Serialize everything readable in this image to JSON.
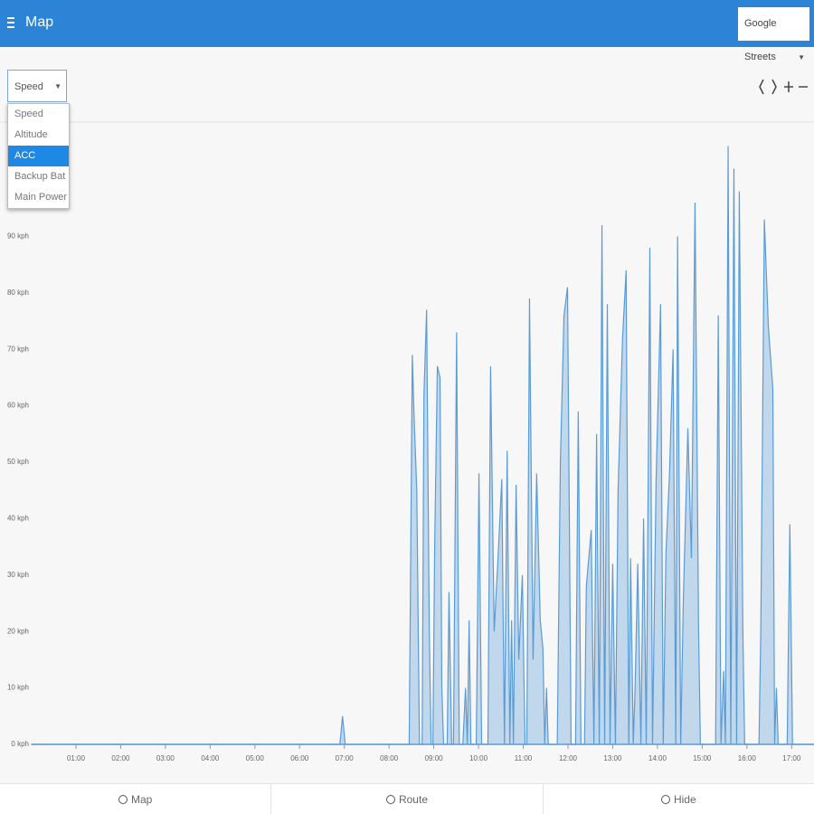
{
  "header": {
    "title": "Map",
    "map_layer": "Google Streets"
  },
  "metric_select": {
    "selected": "Speed",
    "options": [
      "Speed",
      "Altitude",
      "ACC",
      "Backup Bat",
      "Main Power"
    ],
    "highlighted_index": 2
  },
  "footer": {
    "tabs": [
      "Map",
      "Route",
      "Hide"
    ]
  },
  "chart_data": {
    "type": "area",
    "color": "#5b9bd5",
    "x": [
      0,
      6.9,
      6.96,
      7.02,
      8.45,
      8.52,
      8.56,
      8.62,
      8.68,
      8.74,
      8.78,
      8.84,
      8.9,
      8.94,
      8.98,
      9.02,
      9.08,
      9.14,
      9.18,
      9.22,
      9.3,
      9.34,
      9.4,
      9.44,
      9.51,
      9.57,
      9.65,
      9.71,
      9.75,
      9.79,
      9.83,
      9.95,
      10.01,
      10.07,
      10.21,
      10.27,
      10.35,
      10.43,
      10.52,
      10.58,
      10.64,
      10.7,
      10.74,
      10.78,
      10.84,
      10.9,
      10.98,
      11.04,
      11.08,
      11.14,
      11.22,
      11.3,
      11.38,
      11.44,
      11.48,
      11.52,
      11.56,
      11.76,
      11.83,
      11.91,
      11.99,
      12.07,
      12.17,
      12.23,
      12.29,
      12.37,
      12.41,
      12.52,
      12.58,
      12.64,
      12.7,
      12.76,
      12.82,
      12.88,
      12.94,
      13.0,
      13.06,
      13.12,
      13.22,
      13.3,
      13.36,
      13.4,
      13.46,
      13.5,
      13.56,
      13.63,
      13.69,
      13.75,
      13.83,
      13.89,
      13.97,
      14.07,
      14.13,
      14.19,
      14.27,
      14.35,
      14.41,
      14.45,
      14.52,
      14.58,
      14.68,
      14.76,
      14.84,
      14.92,
      14.96,
      15.3,
      15.36,
      15.42,
      15.48,
      15.52,
      15.58,
      15.64,
      15.71,
      15.77,
      15.83,
      15.91,
      15.95,
      16.27,
      16.31,
      16.39,
      16.48,
      16.58,
      16.62,
      16.66,
      16.7,
      16.9,
      16.96,
      17.02,
      17.49
    ],
    "values": [
      0,
      0,
      5,
      0,
      0,
      69,
      58,
      45,
      0,
      0,
      62,
      77,
      20,
      0,
      0,
      35,
      67,
      65,
      10,
      0,
      0,
      27,
      0,
      0,
      73,
      0,
      0,
      10,
      0,
      22,
      0,
      0,
      48,
      0,
      0,
      67,
      20,
      32,
      47,
      0,
      52,
      0,
      22,
      0,
      46,
      15,
      30,
      0,
      0,
      79,
      15,
      48,
      22,
      17,
      0,
      10,
      0,
      0,
      50,
      76,
      81,
      0,
      0,
      59,
      0,
      0,
      28,
      38,
      0,
      55,
      0,
      92,
      0,
      78,
      0,
      32,
      0,
      45,
      72,
      84,
      0,
      33,
      0,
      10,
      32,
      0,
      40,
      0,
      88,
      0,
      47,
      78,
      0,
      34,
      48,
      70,
      0,
      90,
      0,
      26,
      56,
      33,
      96,
      20,
      0,
      0,
      76,
      0,
      13,
      0,
      106,
      0,
      102,
      0,
      98,
      20,
      0,
      0,
      20,
      93,
      74,
      63,
      0,
      10,
      0,
      0,
      39,
      0,
      0
    ],
    "xlim": [
      0,
      17.5
    ],
    "ylim": [
      0,
      110
    ],
    "xticks": [
      {
        "value": 1,
        "label": "01:00"
      },
      {
        "value": 2,
        "label": "02:00"
      },
      {
        "value": 3,
        "label": "03:00"
      },
      {
        "value": 4,
        "label": "04:00"
      },
      {
        "value": 5,
        "label": "05:00"
      },
      {
        "value": 6,
        "label": "06:00"
      },
      {
        "value": 7,
        "label": "07:00"
      },
      {
        "value": 8,
        "label": "08:00"
      },
      {
        "value": 9,
        "label": "09:00"
      },
      {
        "value": 10,
        "label": "10:00"
      },
      {
        "value": 11,
        "label": "11:00"
      },
      {
        "value": 12,
        "label": "12:00"
      },
      {
        "value": 13,
        "label": "13:00"
      },
      {
        "value": 14,
        "label": "14:00"
      },
      {
        "value": 15,
        "label": "15:00"
      },
      {
        "value": 16,
        "label": "16:00"
      },
      {
        "value": 17,
        "label": "17:00"
      }
    ],
    "yticks": [
      {
        "value": 0,
        "label": "0 kph"
      },
      {
        "value": 10,
        "label": "10 kph"
      },
      {
        "value": 20,
        "label": "20 kph"
      },
      {
        "value": 30,
        "label": "30 kph"
      },
      {
        "value": 40,
        "label": "40 kph"
      },
      {
        "value": 50,
        "label": "50 kph"
      },
      {
        "value": 60,
        "label": "60 kph"
      },
      {
        "value": 70,
        "label": "70 kph"
      },
      {
        "value": 80,
        "label": "80 kph"
      },
      {
        "value": 90,
        "label": "90 kph"
      }
    ]
  }
}
